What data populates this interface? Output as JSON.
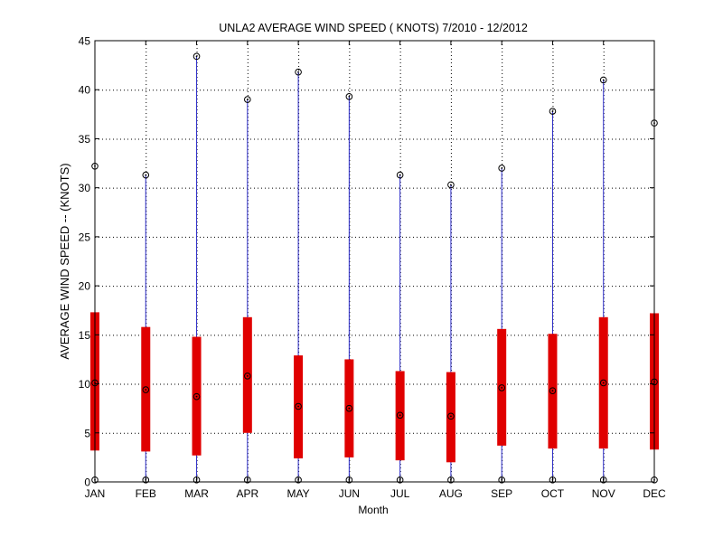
{
  "chart_data": {
    "type": "box",
    "title": "UNLA2  AVERAGE WIND SPEED ( KNOTS) 7/2010 - 12/2012",
    "xlabel": "Month",
    "ylabel": "AVERAGE WIND SPEED -- (KNOTS)",
    "ylim": [
      0,
      45
    ],
    "yticks": [
      0,
      5,
      10,
      15,
      20,
      25,
      30,
      35,
      40,
      45
    ],
    "grid": true,
    "categories": [
      "JAN",
      "FEB",
      "MAR",
      "APR",
      "MAY",
      "JUN",
      "JUL",
      "AUG",
      "SEP",
      "OCT",
      "NOV",
      "DEC"
    ],
    "min": [
      0.2,
      0.2,
      0.2,
      0.2,
      0.2,
      0.2,
      0.2,
      0.2,
      0.2,
      0.2,
      0.2,
      0.2
    ],
    "q1": [
      3.2,
      3.1,
      2.7,
      5.0,
      2.4,
      2.5,
      2.2,
      2.0,
      3.7,
      3.4,
      3.4,
      3.3
    ],
    "median": [
      10.1,
      9.4,
      8.7,
      10.8,
      7.7,
      7.5,
      6.8,
      6.7,
      9.6,
      9.3,
      10.1,
      10.2
    ],
    "q3": [
      17.3,
      15.8,
      14.8,
      16.8,
      12.9,
      12.5,
      11.3,
      11.2,
      15.6,
      15.1,
      16.8,
      17.2
    ],
    "max": [
      32.2,
      31.3,
      43.4,
      39.0,
      41.8,
      39.3,
      31.3,
      30.3,
      32.0,
      37.8,
      41.0,
      36.6
    ],
    "colors": {
      "whisker": "#2b2bc8",
      "box": "#e00000",
      "marker": "#000000",
      "grid": "#000000"
    }
  }
}
